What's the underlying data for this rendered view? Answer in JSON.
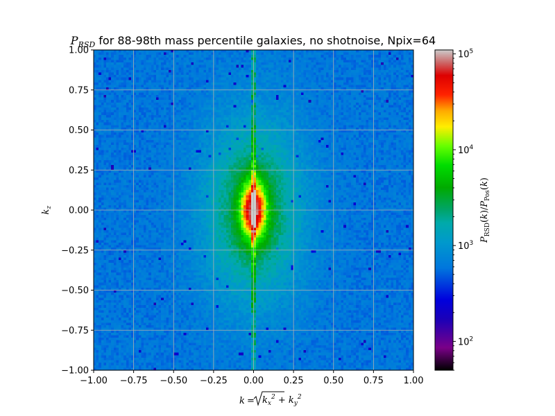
{
  "chart_data": {
    "type": "heatmap",
    "title_symbol": "P",
    "title_symbol_sub": "RSD",
    "title_rest": " for 88-98th mass percentile galaxies, no shotnoise, Npix=64",
    "xlabel": "k = √(k_x² + k_y²)",
    "ylabel": "k_z",
    "colorbar_label": "P_RSD(k)/P_Pos(k)",
    "xlim": [
      -1.0,
      1.0
    ],
    "ylim": [
      -1.0,
      1.0
    ],
    "x_ticks": [
      -1.0,
      -0.75,
      -0.5,
      -0.25,
      0.0,
      0.25,
      0.5,
      0.75,
      1.0
    ],
    "x_tick_labels": [
      "−1.00",
      "−0.75",
      "−0.50",
      "−0.25",
      "0.00",
      "0.25",
      "0.50",
      "0.75",
      "1.00"
    ],
    "y_ticks": [
      1.0,
      0.75,
      0.5,
      0.25,
      0.0,
      -0.25,
      -0.5,
      -0.75,
      -1.0
    ],
    "y_tick_labels": [
      "1.00",
      "0.75",
      "0.50",
      "0.25",
      "0.00",
      "−0.25",
      "−0.50",
      "−0.75",
      "−1.00"
    ],
    "colorbar_scale": "log",
    "colorbar_range": [
      50,
      110000
    ],
    "colorbar_ticks": [
      {
        "value": 100,
        "mantissa": "10",
        "exponent": "2"
      },
      {
        "value": 1000,
        "mantissa": "10",
        "exponent": "3"
      },
      {
        "value": 10000,
        "mantissa": "10",
        "exponent": "4"
      },
      {
        "value": 100000,
        "mantissa": "10",
        "exponent": "5"
      }
    ],
    "colormap": "nipy_spectral",
    "grid": true,
    "grid_color": "#b0b0b0",
    "approx_field": {
      "background_level": 600,
      "center_peak": 110000,
      "envelope_kx_half_width": 0.3,
      "envelope_kz_half_width": 0.55,
      "core_kx_half_width": 0.08,
      "core_kz_half_width": 0.18,
      "spike_along_kz_axis": true
    }
  }
}
